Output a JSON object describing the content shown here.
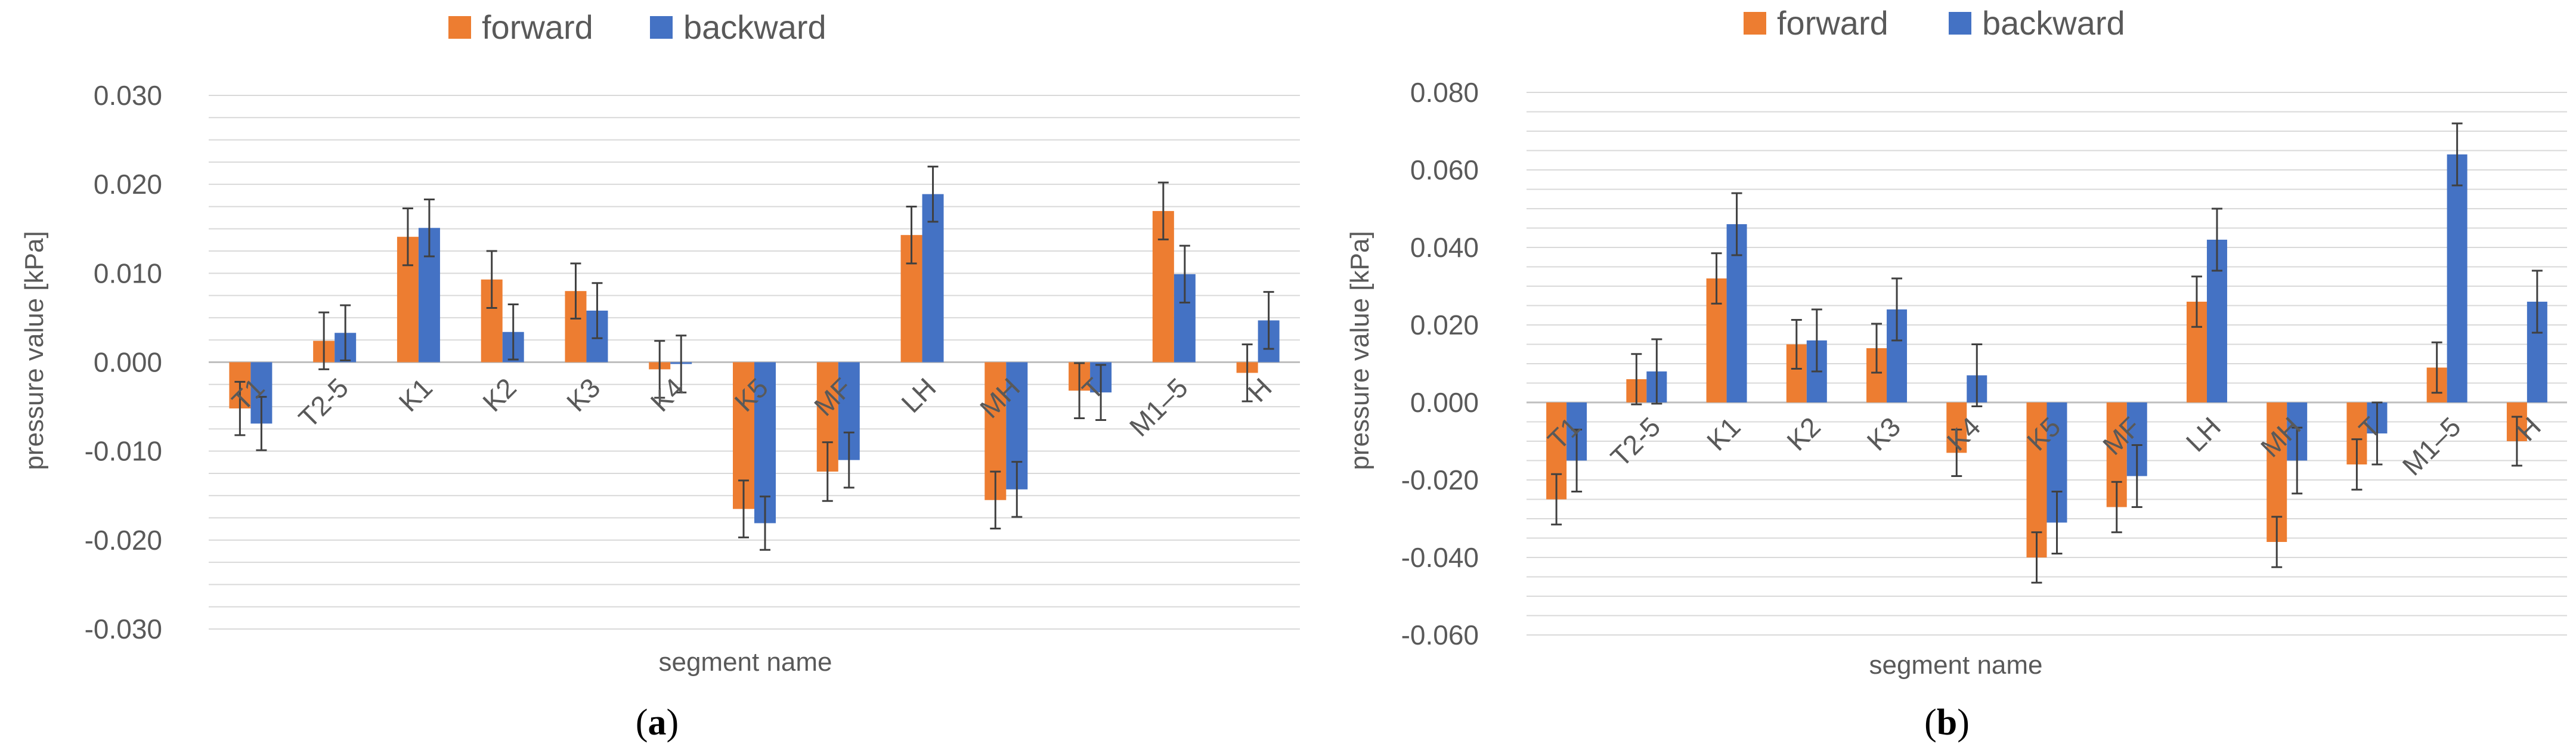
{
  "colors": {
    "forward": "#ED7D31",
    "backward": "#4472C4",
    "grid": "#D9D9D9",
    "error": "#404040"
  },
  "chart_data": [
    {
      "type": "bar",
      "panel_label": "a",
      "categories": [
        "T1",
        "T2-5",
        "K1",
        "K2",
        "K3",
        "K4",
        "K5",
        "MF",
        "LH",
        "MH",
        "T",
        "M1–5",
        "H"
      ],
      "series": [
        {
          "name": "forward",
          "values": [
            -0.0052,
            0.0024,
            0.0141,
            0.0093,
            0.008,
            -0.0008,
            -0.0165,
            -0.0123,
            0.0143,
            -0.0155,
            -0.0032,
            0.017,
            -0.0012
          ],
          "errors": [
            0.003,
            0.0032,
            0.0032,
            0.0032,
            0.0031,
            0.0032,
            0.0032,
            0.0033,
            0.0032,
            0.0032,
            0.0031,
            0.0032,
            0.0032
          ]
        },
        {
          "name": "backward",
          "values": [
            -0.0069,
            0.0033,
            0.0151,
            0.0034,
            0.0058,
            -0.0002,
            -0.0181,
            -0.011,
            0.0189,
            -0.0143,
            -0.0034,
            0.0099,
            0.0047
          ],
          "errors": [
            0.003,
            0.0031,
            0.0032,
            0.0031,
            0.0031,
            0.0032,
            0.003,
            0.0031,
            0.0031,
            0.0031,
            0.0031,
            0.0032,
            0.0032
          ]
        }
      ],
      "yticks": [
        "0.030",
        "0.020",
        "0.010",
        "0.000",
        "-0.010",
        "-0.020",
        "-0.030"
      ],
      "ylim": [
        -0.03,
        0.03
      ],
      "ylabel": "pressure value [kPa]",
      "xlabel": "segment name",
      "legend": [
        "forward",
        "backward"
      ]
    },
    {
      "type": "bar",
      "panel_label": "b",
      "categories": [
        "T1",
        "T2-5",
        "K1",
        "K2",
        "K3",
        "K4",
        "K5",
        "MF",
        "LH",
        "MH",
        "T",
        "M1–5",
        "H"
      ],
      "series": [
        {
          "name": "forward",
          "values": [
            -0.025,
            0.006,
            0.032,
            0.015,
            0.014,
            -0.013,
            -0.04,
            -0.027,
            0.026,
            -0.036,
            -0.016,
            0.009,
            -0.01
          ],
          "errors": [
            0.0065,
            0.0065,
            0.0065,
            0.0063,
            0.0063,
            0.006,
            0.0065,
            0.0065,
            0.0065,
            0.0065,
            0.0065,
            0.0065,
            0.0063
          ]
        },
        {
          "name": "backward",
          "values": [
            -0.015,
            0.008,
            0.046,
            0.016,
            0.024,
            0.007,
            -0.031,
            -0.019,
            0.042,
            -0.015,
            -0.008,
            0.064,
            0.026
          ],
          "errors": [
            0.008,
            0.0083,
            0.008,
            0.008,
            0.008,
            0.008,
            0.008,
            0.008,
            0.008,
            0.0085,
            0.008,
            0.008,
            0.008
          ]
        }
      ],
      "yticks": [
        "0.080",
        "0.060",
        "0.040",
        "0.020",
        "0.000",
        "-0.020",
        "-0.040",
        "-0.060"
      ],
      "ylim": [
        -0.06,
        0.08
      ],
      "ylabel": "pressure value [kPa]",
      "xlabel": "segment name",
      "legend": [
        "forward",
        "backward"
      ]
    }
  ]
}
